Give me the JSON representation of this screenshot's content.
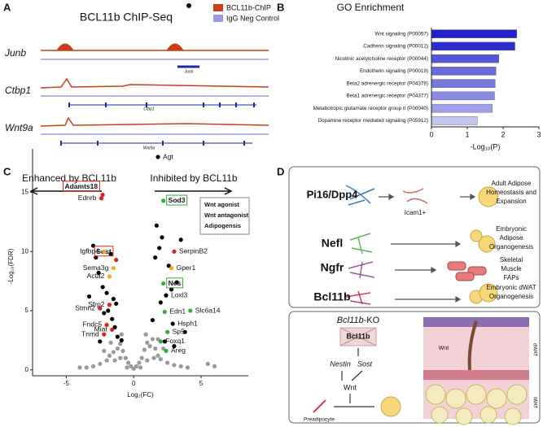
{
  "panel_labels": [
    "A",
    "B",
    "C",
    "D"
  ],
  "chip_seq": {
    "title": "BCL11b ChIP-Seq",
    "legend": [
      {
        "name": "BCL11b-ChIP",
        "color": "#c8401a"
      },
      {
        "name": "IgG Neg Control",
        "color": "#9a9ae8"
      }
    ],
    "tracks": [
      {
        "name": "Junb",
        "gene": "Junb"
      },
      {
        "name": "Ctbp1",
        "gene": "Ctbp1"
      },
      {
        "name": "Wnt9a",
        "gene": "Wnt9a"
      }
    ]
  },
  "chart_data": [
    {
      "type": "bar",
      "orientation": "horizontal",
      "title": "GO Enrichment",
      "xlabel": "-Log₁₀(P)",
      "categories": [
        "Wnt signaling (P00057)",
        "Cadherin signaling (P00012)",
        "Nicotinic acetylcholine receptor (P00044)",
        "Endothelin signaling  (P00019)",
        "Beta2 adrenergic receptor (P04378)",
        "Beta1 adrenergic receptor (P04377)",
        "Metabotropic glutamate receptor group II (P00040)",
        "Dopamine receptor mediated signaling (P05912)"
      ],
      "values": [
        2.38,
        2.33,
        1.88,
        1.8,
        1.78,
        1.76,
        1.7,
        1.28
      ],
      "colors": [
        "#2222cc",
        "#2f2fd0",
        "#5555d8",
        "#6a6adc",
        "#7878e0",
        "#8a8ae4",
        "#a0a0ea",
        "#c4c4f2"
      ],
      "xlim": [
        0,
        3
      ],
      "xticks": [
        0,
        1,
        2,
        3
      ]
    },
    {
      "type": "scatter",
      "xlabel": "Log₂(FC)",
      "ylabel": "-Log₁₀(FDR)",
      "annotations": [
        "Enhanced by BCL11b",
        "Inhibited by BCL11b"
      ],
      "xlim": [
        -7.5,
        8.5
      ],
      "ylim": [
        -0.5,
        18
      ],
      "xticks": [
        -5,
        0,
        5
      ],
      "yticks": [
        0,
        5,
        10,
        15
      ],
      "series": [
        {
          "color": "#999999",
          "x": [
            -3,
            -2.5,
            -2,
            -1.8,
            -1.5,
            -1.2,
            -1,
            -0.8,
            -0.6,
            -0.4,
            -0.2,
            0,
            0.2,
            0.4,
            0.6,
            0.8,
            1,
            1.2,
            1.4,
            1.6,
            1.8,
            2,
            2.5,
            3,
            3.5,
            4,
            5.5,
            6,
            -4,
            -3.5,
            -1.4,
            -1,
            -0.5,
            0.5,
            1,
            1.5,
            2.2,
            -2.2,
            -1.7,
            1.8,
            0.9,
            -0.9
          ],
          "y": [
            0.3,
            0.5,
            0.8,
            1.2,
            1.5,
            1.8,
            2.2,
            1.6,
            1,
            0.6,
            0.3,
            0.1,
            0.3,
            0.6,
            1,
            1.7,
            2.3,
            2,
            2.6,
            1.8,
            1.2,
            0.9,
            0.6,
            0.4,
            0.3,
            0.2,
            0.5,
            0.3,
            0.2,
            0.2,
            0.8,
            1,
            0.2,
            0.2,
            0.8,
            1,
            1.8,
            1.6,
            2.3,
            2.6,
            3,
            3
          ]
        },
        {
          "color": "#000000",
          "x": [
            1.8,
            2.4,
            2.9,
            -2.8,
            -2.6,
            -2.3,
            -2,
            -1.9,
            -1.6,
            -1.4,
            -1.2,
            -2.5,
            -3,
            -1.7,
            -2.2,
            -1.5,
            -1.3,
            1.6,
            1.9,
            2.1,
            2.6,
            3.2,
            3.5,
            1.4,
            2,
            2.8,
            3.8,
            1.7,
            2.3,
            3,
            -0.9,
            -3.3
          ],
          "y": [
            18,
            6.3,
            3.9,
            9.5,
            8.2,
            7,
            6.5,
            5,
            4.3,
            3.6,
            2.8,
            2.4,
            10.5,
            9.8,
            4.8,
            6,
            5.6,
            9.5,
            10.3,
            11.2,
            8.8,
            7.4,
            11,
            4.2,
            5.7,
            6.8,
            3.2,
            12.2,
            2.4,
            2,
            2.5,
            6.2
          ],
          "labels": [
            "Agt",
            "Loxl3",
            "Hsph1",
            null,
            null,
            null,
            null,
            null,
            null,
            null,
            null,
            null,
            null,
            null,
            null,
            null,
            null,
            null,
            null,
            null,
            null,
            null,
            null,
            null,
            null,
            null,
            null,
            null,
            null,
            null,
            null,
            null
          ]
        },
        {
          "name": "Wnt agonist",
          "color": "#3aaa35",
          "x": [
            2.2,
            2.2,
            4.2,
            2.3,
            2.5,
            2,
            2.4
          ],
          "y": [
            14.3,
            7.3,
            5,
            4.9,
            3.2,
            2.4,
            1.6
          ],
          "labels": [
            "Sod3",
            "Nes",
            "Slc6a14",
            "Edn1",
            "Sp5",
            "Foxq1",
            "Areg"
          ],
          "boxed": [
            true,
            true,
            false,
            false,
            false,
            false,
            false
          ]
        },
        {
          "name": "Wnt antagonist",
          "color": "#e02020",
          "x": [
            -2.3,
            -2.4,
            3,
            -1.3,
            -1.8,
            -2.5,
            -2,
            -1.6,
            -2.2
          ],
          "y": [
            14.8,
            14.5,
            10,
            9.3,
            5.5,
            5.2,
            3.8,
            3.4,
            3
          ],
          "labels": [
            "Adamts18",
            "Ednrb",
            "SerpinB2",
            "Sost",
            "Sfrp2",
            "Stmn2",
            "Fndc5",
            "Miat",
            "Tnmd"
          ],
          "boxed": [
            true,
            false,
            false,
            true,
            false,
            false,
            false,
            false,
            false
          ]
        },
        {
          "name": "Adipogensis",
          "color": "#f5a623",
          "x": [
            -2.2,
            2.8,
            -1.5,
            -1.8
          ],
          "y": [
            10,
            8.6,
            8.6,
            7.9
          ],
          "labels": [
            "Igfbp4",
            "Gper1",
            "Sema3g",
            "Acta2"
          ]
        }
      ]
    }
  ],
  "diagram": {
    "populations": [
      {
        "label": "Pi16/Dpp4",
        "color": "#3a7abf",
        "outcome": [
          "Adult Adipose",
          "Homeostasis and",
          "Expansion"
        ]
      },
      {
        "label": "Nefl",
        "color": "#5cb85c",
        "outcome": [
          "Embryonic",
          "Adipose",
          "Organogenesis"
        ]
      },
      {
        "label": "Ngfr",
        "color": "#a05aa0",
        "outcome": [
          "Skeletal",
          "Muscle",
          "FAPs"
        ]
      },
      {
        "label": "Bcl11b",
        "color": "#c8405a",
        "outcome": [
          "Embryonic dWAT",
          "Organogenesis"
        ]
      }
    ],
    "intermediate": "Icam1+",
    "ko": {
      "title": [
        "Bcl11b",
        "-KO"
      ],
      "knocked": "Bcl11b",
      "nestin": "Nestin",
      "sost": "Sost",
      "wnt": "Wnt",
      "cell": "Preadipocyte",
      "tissue": {
        "signal": "Wnt",
        "layers": [
          "dWAT",
          "iWAT"
        ]
      }
    }
  }
}
